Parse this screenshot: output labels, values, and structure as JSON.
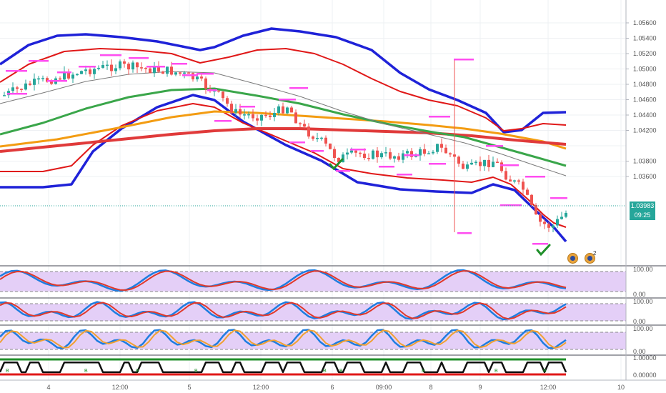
{
  "chart_data": {
    "type": "candlestick",
    "price_axis": {
      "ticks": [
        "1.05600",
        "1.05400",
        "1.05200",
        "1.05000",
        "1.04800",
        "1.04600",
        "1.04400",
        "1.04200",
        "1.03800",
        "1.03600"
      ],
      "current_price": "1.03983",
      "countdown": "09:25",
      "range": [
        1.035,
        1.0575
      ]
    },
    "time_axis": {
      "labels": [
        "4",
        "12:00",
        "5",
        "12:00",
        "6",
        "09:00",
        "8",
        "9",
        "12:00",
        "10"
      ]
    },
    "oscillators": [
      {
        "top_label": "100.00",
        "bottom_label": "0.00"
      },
      {
        "top_label": "100.00",
        "bottom_label": "0.00"
      },
      {
        "top_label": "100.00",
        "bottom_label": "0.00"
      },
      {
        "top_label": "1.00000",
        "bottom_label": "0.00000"
      }
    ],
    "signal_markers": [
      "B",
      "B",
      "B",
      "B",
      "B",
      "B",
      "B",
      "B",
      "B"
    ],
    "event_count": "2",
    "colors": {
      "up_candle": "#26a69a",
      "down_candle": "#ef5350",
      "outer_band": "#1f22d8",
      "inner_band": "#e01818",
      "ma_green": "#3aa64a",
      "ma_orange": "#f39c12",
      "ma_red": "#e03a3a",
      "ma_gray": "#7a7a7a",
      "level_marks": "#ff4df0",
      "zone_fill": "#e4cff7",
      "line_blue": "#1e7de0",
      "line_red": "#e0392b",
      "line_orange": "#f0a030"
    }
  }
}
